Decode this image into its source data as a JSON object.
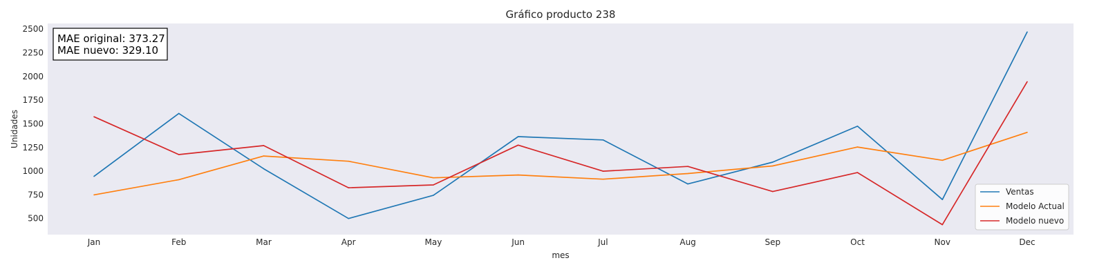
{
  "chart_data": {
    "type": "line",
    "title": "Gráfico producto 238",
    "xlabel": "mes",
    "ylabel": "Unidades",
    "categories": [
      "Jan",
      "Feb",
      "Mar",
      "Apr",
      "May",
      "Jun",
      "Jul",
      "Aug",
      "Sep",
      "Oct",
      "Nov",
      "Dec"
    ],
    "yticks": [
      500,
      750,
      1000,
      1250,
      1500,
      1750,
      2000,
      2250,
      2500
    ],
    "ylim": [
      330,
      2560
    ],
    "grid": false,
    "background_color": "#eaeaf2",
    "legend_position": "lower-right",
    "series": [
      {
        "name": "Ventas",
        "color": "#1f77b4",
        "values": [
          945,
          1610,
          1025,
          500,
          745,
          1365,
          1330,
          865,
          1095,
          1475,
          700,
          2470
        ]
      },
      {
        "name": "Modelo Actual",
        "color": "#ff7f0e",
        "values": [
          750,
          910,
          1160,
          1105,
          930,
          960,
          915,
          975,
          1055,
          1255,
          1115,
          1410
        ]
      },
      {
        "name": "Modelo nuevo",
        "color": "#d62728",
        "values": [
          1575,
          1175,
          1270,
          825,
          855,
          1275,
          1000,
          1050,
          785,
          985,
          435,
          1945
        ]
      }
    ],
    "annotation": {
      "lines": [
        "MAE original: 373.27",
        "MAE nuevo: 329.10"
      ],
      "position": "top-left"
    }
  }
}
